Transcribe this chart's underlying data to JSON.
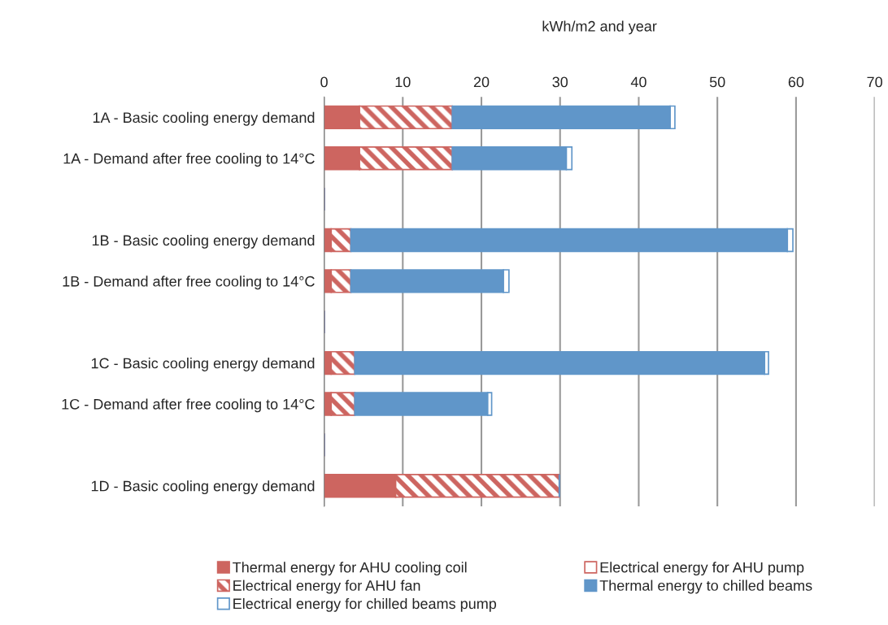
{
  "chart_data": {
    "type": "bar",
    "orientation": "horizontal",
    "stacked": true,
    "xlabel": "kWh/m2 and year",
    "categories": [
      "1A - Basic cooling energy demand",
      "1A - Demand after free cooling to 14°C",
      null,
      "1B - Basic cooling energy demand",
      "1B - Demand after free cooling to 14°C",
      null,
      "1C - Basic cooling energy demand",
      "1C - Demand after free cooling to 14°C",
      null,
      "1D - Basic cooling energy demand"
    ],
    "series": [
      {
        "name": "Thermal energy for AHU cooling coil",
        "color": "#cd6560",
        "values": [
          4.5,
          4.5,
          null,
          0.9,
          0.9,
          null,
          0.9,
          0.9,
          null,
          9.1
        ]
      },
      {
        "name": "Electrical energy for AHU pump",
        "color": "#cd6560",
        "values": [
          0,
          0,
          null,
          0,
          0,
          null,
          0,
          0,
          null,
          0
        ]
      },
      {
        "name": "Electrical energy for AHU fan",
        "color": "#cd6560",
        "values": [
          11.8,
          11.8,
          null,
          2.5,
          2.5,
          null,
          3.0,
          3.0,
          null,
          20.8
        ]
      },
      {
        "name": "Thermal energy to chilled beams",
        "color": "#6096c9",
        "values": [
          27.7,
          14.5,
          null,
          55.5,
          19.4,
          null,
          52.1,
          16.9,
          null,
          0
        ]
      },
      {
        "name": "Electrical energy for chilled beams pump",
        "color": "#6096c9",
        "values": [
          0.6,
          0.7,
          null,
          0.7,
          0.7,
          null,
          0.5,
          0.5,
          null,
          0
        ]
      }
    ],
    "xlim": [
      0,
      70
    ],
    "xticks": [
      0,
      10,
      20,
      30,
      40,
      50,
      60,
      70
    ],
    "grid": "x",
    "legend": "bottom"
  }
}
